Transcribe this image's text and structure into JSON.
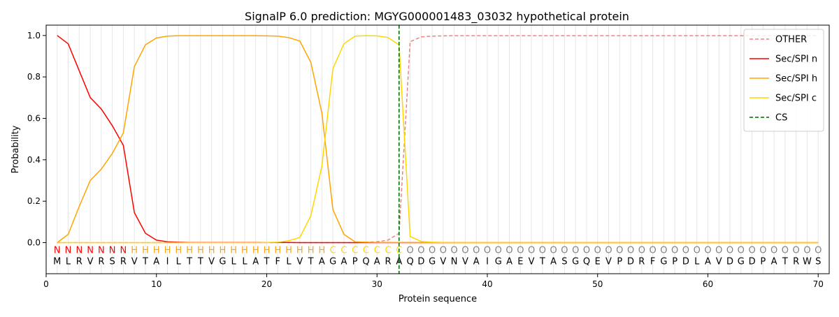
{
  "chart_data": {
    "type": "line",
    "title": "SignalP 6.0 prediction: MGYG000001483_03032 hypothetical protein",
    "xlabel": "Protein sequence",
    "ylabel": "Probability",
    "xlim": [
      0,
      71
    ],
    "ylim": [
      -0.15,
      1.05
    ],
    "x_ticks": [
      0,
      10,
      20,
      30,
      40,
      50,
      60,
      70
    ],
    "y_ticks": [
      0.0,
      0.2,
      0.4,
      0.6,
      0.8,
      1.0
    ],
    "x_tick_labels": [
      "0",
      "10",
      "20",
      "30",
      "40",
      "50",
      "60",
      "70"
    ],
    "y_tick_labels": [
      "0.0",
      "0.2",
      "0.4",
      "0.6",
      "0.8",
      "1.0"
    ],
    "grid": "vertical lines at each residue position",
    "legend_position": "top-right",
    "sequence": [
      "M",
      "L",
      "R",
      "V",
      "R",
      "S",
      "R",
      "V",
      "T",
      "A",
      "I",
      "L",
      "T",
      "T",
      "V",
      "G",
      "L",
      "L",
      "A",
      "T",
      "F",
      "L",
      "V",
      "T",
      "A",
      "G",
      "A",
      "P",
      "Q",
      "A",
      "R",
      "A",
      "Q",
      "D",
      "G",
      "V",
      "N",
      "V",
      "A",
      "I",
      "G",
      "A",
      "E",
      "V",
      "T",
      "A",
      "S",
      "G",
      "Q",
      "E",
      "V",
      "P",
      "D",
      "R",
      "F",
      "G",
      "P",
      "D",
      "L",
      "A",
      "V",
      "D",
      "G",
      "D",
      "P",
      "A",
      "T",
      "R",
      "W",
      "S"
    ],
    "region_labels": [
      "N",
      "N",
      "N",
      "N",
      "N",
      "N",
      "N",
      "H",
      "H",
      "H",
      "H",
      "H",
      "H",
      "H",
      "H",
      "H",
      "H",
      "H",
      "H",
      "H",
      "H",
      "H",
      "H",
      "H",
      "H",
      "C",
      "C",
      "C",
      "C",
      "C",
      "C",
      "C",
      "O",
      "O",
      "O",
      "O",
      "O",
      "O",
      "O",
      "O",
      "O",
      "O",
      "O",
      "O",
      "O",
      "O",
      "O",
      "O",
      "O",
      "O",
      "O",
      "O",
      "O",
      "O",
      "O",
      "O",
      "O",
      "O",
      "O",
      "O",
      "O",
      "O",
      "O",
      "O",
      "O",
      "O",
      "O",
      "O",
      "O",
      "O"
    ],
    "region_colors": {
      "N": "#ff0000",
      "H": "#ffa500",
      "C": "#ffd700",
      "O": "#808080"
    },
    "cs_position": 32,
    "series": [
      {
        "name": "OTHER",
        "color": "#f08080",
        "dash": "dashed",
        "values": [
          0,
          0,
          0,
          0,
          0,
          0,
          0,
          0,
          0,
          0,
          0,
          0,
          0,
          0,
          0,
          0,
          0,
          0,
          0,
          0,
          0,
          0,
          0,
          0,
          0,
          0,
          0,
          0,
          0.002,
          0.004,
          0.012,
          0.045,
          0.97,
          0.993,
          0.997,
          0.998,
          0.999,
          0.999,
          0.999,
          0.999,
          0.999,
          0.999,
          0.999,
          0.999,
          0.999,
          0.999,
          0.999,
          0.999,
          0.999,
          0.999,
          0.999,
          0.999,
          0.999,
          0.999,
          0.999,
          0.999,
          0.999,
          0.999,
          0.999,
          0.999,
          0.999,
          0.999,
          0.999,
          0.999,
          0.999,
          0.999,
          0.999,
          0.999,
          0.999,
          0.999
        ]
      },
      {
        "name": "Sec/SPI n",
        "color": "#ff0000",
        "dash": "solid",
        "values": [
          1.0,
          0.96,
          0.83,
          0.7,
          0.645,
          0.565,
          0.47,
          0.145,
          0.045,
          0.012,
          0.004,
          0.002,
          0.001,
          0.001,
          0.001,
          0.001,
          0.001,
          0.001,
          0.001,
          0.001,
          0.001,
          0.001,
          0,
          0,
          0,
          0,
          0,
          0,
          0,
          0,
          0,
          0,
          0,
          0,
          0,
          0,
          0,
          0,
          0,
          0,
          0,
          0,
          0,
          0,
          0,
          0,
          0,
          0,
          0,
          0,
          0,
          0,
          0,
          0,
          0,
          0,
          0,
          0,
          0,
          0,
          0,
          0,
          0,
          0,
          0,
          0,
          0,
          0,
          0,
          0
        ]
      },
      {
        "name": "Sec/SPI h",
        "color": "#ffa500",
        "dash": "solid",
        "values": [
          0.0,
          0.04,
          0.175,
          0.3,
          0.355,
          0.43,
          0.53,
          0.85,
          0.955,
          0.988,
          0.997,
          0.999,
          0.999,
          0.999,
          0.999,
          0.999,
          0.999,
          0.999,
          0.999,
          0.998,
          0.997,
          0.99,
          0.973,
          0.87,
          0.625,
          0.16,
          0.04,
          0.004,
          0.002,
          0.001,
          0.001,
          0.001,
          0,
          0,
          0,
          0,
          0,
          0,
          0,
          0,
          0,
          0,
          0,
          0,
          0,
          0,
          0,
          0,
          0,
          0,
          0,
          0,
          0,
          0,
          0,
          0,
          0,
          0,
          0,
          0,
          0,
          0,
          0,
          0,
          0,
          0,
          0,
          0,
          0,
          0
        ]
      },
      {
        "name": "Sec/SPI c",
        "color": "#ffd700",
        "dash": "solid",
        "values": [
          0,
          0,
          0,
          0,
          0,
          0,
          0,
          0,
          0,
          0,
          0,
          0,
          0,
          0,
          0,
          0,
          0,
          0,
          0,
          0.001,
          0.002,
          0.009,
          0.025,
          0.13,
          0.37,
          0.84,
          0.96,
          0.997,
          0.999,
          0.998,
          0.99,
          0.955,
          0.03,
          0.006,
          0.002,
          0.001,
          0,
          0,
          0,
          0,
          0,
          0,
          0,
          0,
          0,
          0,
          0,
          0,
          0,
          0,
          0,
          0,
          0,
          0,
          0,
          0,
          0,
          0,
          0,
          0,
          0,
          0,
          0,
          0,
          0,
          0,
          0,
          0,
          0,
          0
        ]
      }
    ],
    "legend": [
      "OTHER",
      "Sec/SPI n",
      "Sec/SPI h",
      "Sec/SPI c",
      "CS"
    ],
    "cs_color": "#006400"
  }
}
